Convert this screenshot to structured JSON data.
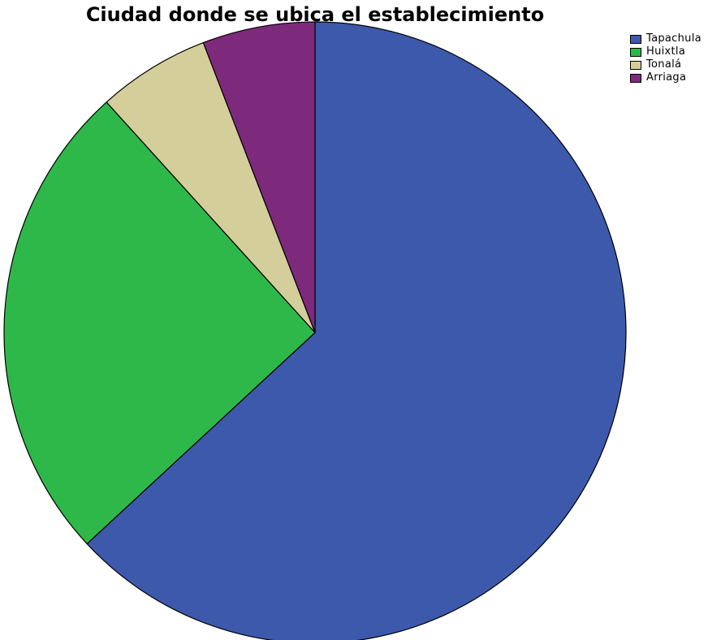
{
  "chart_data": {
    "type": "pie",
    "title": "Ciudad donde se ubica el establecimiento",
    "categories": [
      "Tapachula",
      "Huixtla",
      "Tonalá",
      "Arriaga"
    ],
    "values": [
      63.1,
      25.2,
      5.85,
      5.85
    ],
    "colors": [
      "#3d59ab",
      "#2fb84a",
      "#d4cf9a",
      "#7d2a7c"
    ],
    "start_angle_deg": 0,
    "direction": "clockwise",
    "legend_placement": "top-right"
  }
}
